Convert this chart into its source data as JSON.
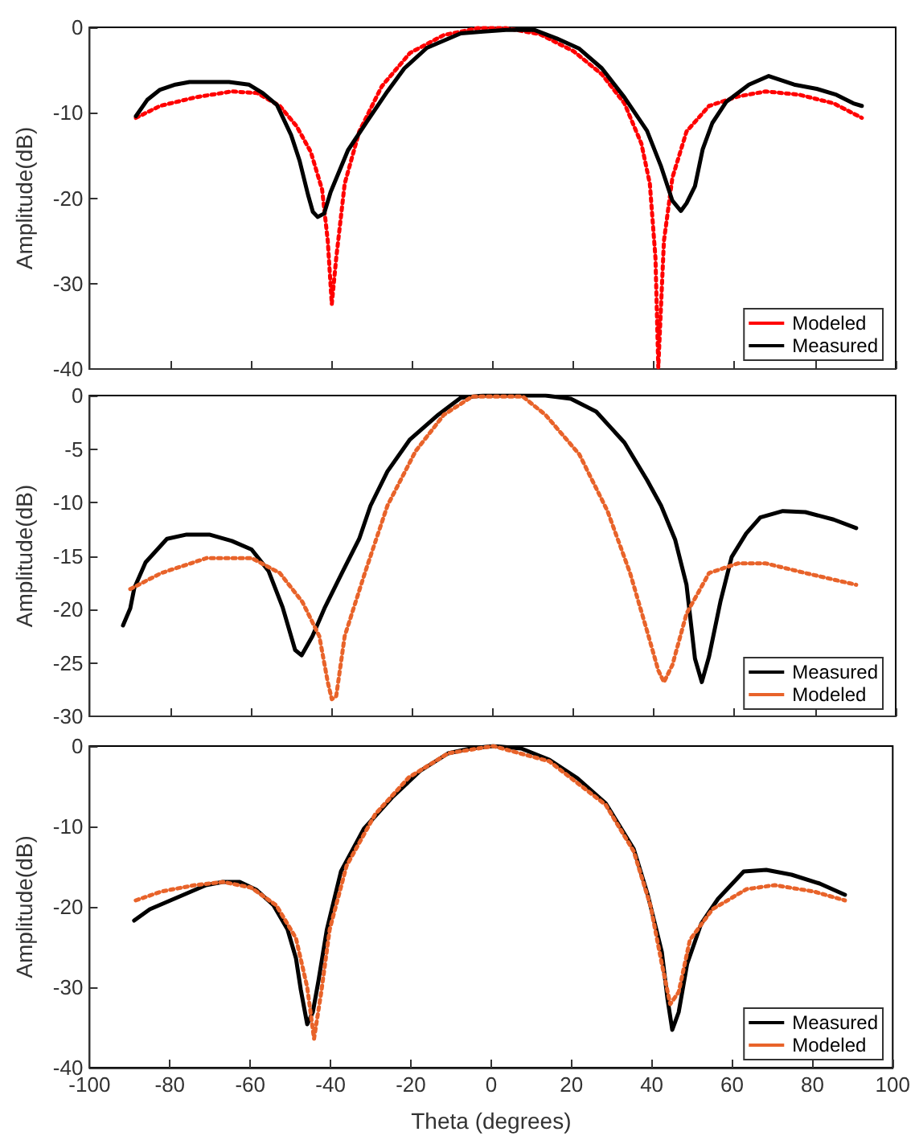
{
  "chart_data": [
    {
      "type": "line",
      "ylabel": "Amplitude(dB)",
      "xlim": [
        -100,
        100
      ],
      "xticks": [
        -100,
        -80,
        -60,
        -40,
        -20,
        0,
        20,
        40,
        60,
        80,
        100
      ],
      "ylim": [
        -40,
        0
      ],
      "yticks": [
        -40,
        -30,
        -20,
        -10,
        0
      ],
      "tick_labels": "y",
      "grid": false,
      "legend": "bottom right",
      "marker": "none",
      "series": [
        {
          "name": "Modeled",
          "color": "#ff0000",
          "line_style": "dotted",
          "x": [
            -88.5,
            -82.5,
            -73.8,
            -64.7,
            -58.4,
            -52.8,
            -48.6,
            -45.1,
            -42.3,
            -40.9,
            -39.9,
            -38.8,
            -36.7,
            -33.1,
            -27.5,
            -20.5,
            -12.1,
            -3.7,
            3.3,
            11.7,
            20.1,
            27.1,
            32.7,
            36.9,
            39,
            40.4,
            41.1,
            42.5,
            44.6,
            48.1,
            53.7,
            60.8,
            67.8,
            76.2,
            84.6,
            91.6
          ],
          "values": [
            -10.6,
            -9.2,
            -8.2,
            -7.5,
            -7.7,
            -9.2,
            -11.6,
            -14.6,
            -19,
            -25,
            -32.4,
            -27,
            -18.3,
            -12.2,
            -6.9,
            -3,
            -0.9,
            -0.1,
            -0.1,
            -0.8,
            -2.8,
            -5.5,
            -8.9,
            -13.6,
            -18.3,
            -27,
            -39.8,
            -25,
            -17.6,
            -12.2,
            -9.2,
            -8.1,
            -7.5,
            -7.9,
            -8.9,
            -10.6
          ]
        },
        {
          "name": "Measured",
          "color": "#000000",
          "line_style": "solid",
          "x": [
            -88.5,
            -85.7,
            -82.5,
            -78.7,
            -75.2,
            -65.4,
            -60.5,
            -57,
            -53.5,
            -50,
            -47.9,
            -45.8,
            -44.6,
            -43.4,
            -41.8,
            -40.2,
            -35.9,
            -31,
            -26.1,
            -21.9,
            -16.3,
            -7.9,
            -2.3,
            3.3,
            10.3,
            15.9,
            21.5,
            27.1,
            32.7,
            38.3,
            41.8,
            44.6,
            46.7,
            48.1,
            50.2,
            52.1,
            54.5,
            58,
            63.6,
            68.5,
            74.8,
            80.4,
            85.3,
            89.5,
            91.6
          ],
          "values": [
            -10.4,
            -8.5,
            -7.3,
            -6.7,
            -6.4,
            -6.4,
            -6.7,
            -7.7,
            -9.1,
            -12.6,
            -15.6,
            -19.6,
            -21.6,
            -22.2,
            -21.8,
            -19.3,
            -14.4,
            -10.9,
            -7.5,
            -4.8,
            -2.4,
            -0.7,
            -0.5,
            -0.3,
            -0.3,
            -1.3,
            -2.5,
            -4.8,
            -8.2,
            -12.1,
            -16.3,
            -20.3,
            -21.5,
            -20.6,
            -18.6,
            -14.3,
            -11.2,
            -8.7,
            -6.7,
            -5.7,
            -6.7,
            -7.2,
            -7.9,
            -8.9,
            -9.2
          ]
        }
      ]
    },
    {
      "type": "line",
      "ylabel": "Amplitude(dB)",
      "xlim": [
        -100,
        100
      ],
      "xticks": [
        -100,
        -80,
        -60,
        -40,
        -20,
        0,
        20,
        40,
        60,
        80,
        100
      ],
      "ylim": [
        -30,
        0
      ],
      "yticks": [
        -30,
        -25,
        -20,
        -15,
        -10,
        -5,
        0
      ],
      "tick_labels": "y",
      "grid": false,
      "legend": "bottom right",
      "marker": "none",
      "series": [
        {
          "name": "Measured",
          "color": "#000000",
          "line_style": "solid",
          "x": [
            -91.7,
            -89.9,
            -88.9,
            -86.1,
            -80.8,
            -75.9,
            -70.3,
            -64.7,
            -59.8,
            -55.6,
            -52.1,
            -49,
            -47.4,
            -44.7,
            -41.6,
            -37.4,
            -33.1,
            -30.3,
            -26.1,
            -20.5,
            -13.5,
            -7.9,
            -2.3,
            13.1,
            19.4,
            25.7,
            32.7,
            38.3,
            41.8,
            45.3,
            48.1,
            50.2,
            51.9,
            53.7,
            56.5,
            59.3,
            62.9,
            66.4,
            72,
            77.6,
            84.6,
            90.2
          ],
          "values": [
            -21.5,
            -19.9,
            -18,
            -15.6,
            -13.4,
            -13,
            -13,
            -13.6,
            -14.4,
            -16.4,
            -19.8,
            -23.8,
            -24.3,
            -22.5,
            -19.8,
            -16.6,
            -13.4,
            -10.3,
            -7.1,
            -4.1,
            -1.8,
            -0.2,
            0,
            0,
            -0.3,
            -1.5,
            -4.4,
            -7.9,
            -10.3,
            -13.5,
            -17.7,
            -24.6,
            -26.8,
            -24.4,
            -19.3,
            -15.1,
            -12.9,
            -11.4,
            -10.8,
            -10.9,
            -11.6,
            -12.4
          ]
        },
        {
          "name": "Modeled",
          "color": "#e8632a",
          "line_style": "dotted",
          "x": [
            -89.9,
            -82.2,
            -70.9,
            -59.8,
            -52.8,
            -47.2,
            -43,
            -40.9,
            -39.9,
            -38.8,
            -36.7,
            -31.7,
            -26.1,
            -19.1,
            -12.1,
            -5.1,
            7.5,
            13.1,
            21.5,
            28.5,
            34.1,
            38.3,
            41.1,
            42.5,
            44.6,
            48.1,
            53.7,
            60.8,
            67.8,
            77.6,
            90.2
          ],
          "values": [
            -18.1,
            -16.6,
            -15.2,
            -15.2,
            -16.6,
            -19.3,
            -22.5,
            -26.8,
            -28.4,
            -28.1,
            -22.5,
            -16.6,
            -10.3,
            -5.2,
            -1.8,
            -0.1,
            -0.1,
            -1.8,
            -5.5,
            -10.8,
            -16.6,
            -22,
            -25.7,
            -26.8,
            -25.2,
            -20.4,
            -16.6,
            -15.7,
            -15.7,
            -16.6,
            -17.7
          ]
        }
      ]
    },
    {
      "type": "line",
      "ylabel": "Amplitude(dB)",
      "xlabel": "Theta (degrees)",
      "xlim": [
        -100,
        100
      ],
      "xticks": [
        -100,
        -80,
        -60,
        -40,
        -20,
        0,
        20,
        40,
        60,
        80,
        100
      ],
      "ylim": [
        -40,
        0
      ],
      "yticks": [
        -40,
        -30,
        -20,
        -10,
        0
      ],
      "grid": false,
      "legend": "bottom right",
      "marker": "none",
      "series": [
        {
          "name": "Measured",
          "color": "#000000",
          "line_style": "solid",
          "x": [
            -88.9,
            -85,
            -76.6,
            -71,
            -66.8,
            -62.6,
            -58.4,
            -54.2,
            -50.7,
            -48.6,
            -47.4,
            -45.8,
            -44.4,
            -43,
            -40.9,
            -37.4,
            -31.7,
            -24.7,
            -17.7,
            -10.7,
            -5.1,
            0.5,
            7.5,
            14.5,
            21.5,
            28.5,
            35.5,
            39,
            42.5,
            43.9,
            45.1,
            46.7,
            48.8,
            52.3,
            56.5,
            62.9,
            68.5,
            74.8,
            81.8,
            88.1
          ],
          "values": [
            -21.7,
            -20.3,
            -18.5,
            -17.3,
            -16.9,
            -16.9,
            -17.9,
            -19.8,
            -22.8,
            -26.4,
            -30.3,
            -34.6,
            -33.1,
            -29.2,
            -22.8,
            -15.6,
            -10.3,
            -6.4,
            -3.1,
            -0.9,
            -0.3,
            0,
            -0.3,
            -1.7,
            -4,
            -7.1,
            -12.8,
            -18.5,
            -25.6,
            -31.4,
            -35.3,
            -33.1,
            -27.1,
            -22.1,
            -19,
            -15.6,
            -15.4,
            -16,
            -17.1,
            -18.5
          ]
        },
        {
          "name": "Modeled",
          "color": "#e8632a",
          "line_style": "dotted",
          "x": [
            -88.5,
            -82.2,
            -73.8,
            -66.8,
            -59.8,
            -53.5,
            -48.6,
            -45.8,
            -44.1,
            -42.3,
            -40.2,
            -36,
            -28.9,
            -20.5,
            -10.7,
            0.5,
            14.5,
            28.5,
            35.5,
            39.7,
            42.5,
            44.6,
            46.7,
            49.5,
            55.1,
            63.6,
            70.6,
            80.4,
            88.1
          ],
          "values": [
            -19.2,
            -18.1,
            -17.3,
            -16.9,
            -17.6,
            -19.8,
            -23.9,
            -30,
            -36.4,
            -30.6,
            -22.8,
            -14.9,
            -8.5,
            -3.9,
            -0.9,
            0,
            -1.9,
            -7.3,
            -13.1,
            -19.9,
            -27.1,
            -32.1,
            -30.6,
            -24.1,
            -20.3,
            -17.8,
            -17.3,
            -18.1,
            -19.2
          ]
        }
      ]
    }
  ]
}
